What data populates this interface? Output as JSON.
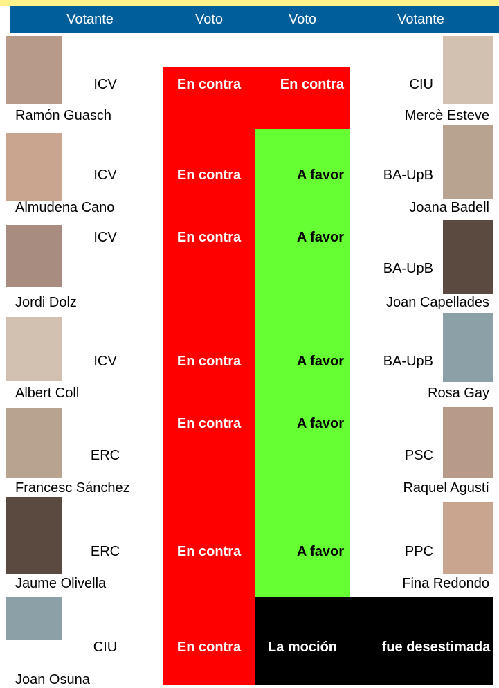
{
  "header": {
    "columns": [
      "Votante",
      "Voto",
      "Voto",
      "Votante"
    ]
  },
  "rows": [
    {
      "left": {
        "party": "ICV",
        "name": "Ramón Guasch"
      },
      "votes": [
        "En contra",
        "En contra"
      ],
      "right": {
        "party": "CIU",
        "name": "Mercè Esteve"
      }
    },
    {
      "left": {
        "party": "ICV",
        "name": "Almudena Cano"
      },
      "votes": [
        "En contra",
        "A favor"
      ],
      "right": {
        "party": "BA-UpB",
        "name": "Joana Badell"
      }
    },
    {
      "left": {
        "party": "ICV",
        "name": "Jordi Dolz"
      },
      "votes": [
        "En contra",
        "A favor"
      ],
      "right": {
        "party": "BA-UpB",
        "name": "Joan Capellades"
      }
    },
    {
      "left": {
        "party": "ICV",
        "name": "Albert Coll"
      },
      "votes": [
        "En contra",
        "A favor"
      ],
      "right": {
        "party": "BA-UpB",
        "name": "Rosa Gay"
      }
    },
    {
      "left": {
        "party": "ERC",
        "name": "Francesc Sánchez"
      },
      "votes": [
        "En contra",
        "A favor"
      ],
      "right": {
        "party": "PSC",
        "name": "Raquel Agustí"
      }
    },
    {
      "left": {
        "party": "ERC",
        "name": "Jaume Olivella"
      },
      "votes": [
        "En contra",
        "A favor"
      ],
      "right": {
        "party": "PPC",
        "name": "Fina Redondo"
      }
    },
    {
      "left": {
        "party": "CIU",
        "name": "Joan Osuna"
      },
      "votes": [
        "En contra"
      ]
    }
  ],
  "result": [
    "La moción",
    "fue desestimada"
  ]
}
